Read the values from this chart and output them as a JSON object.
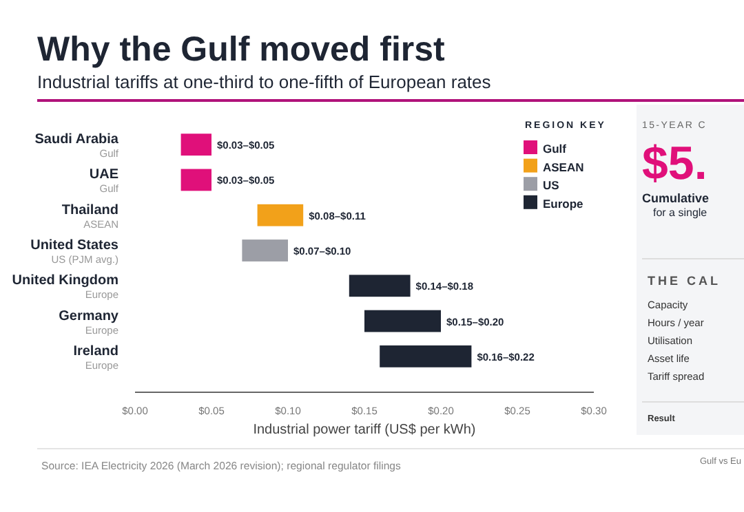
{
  "chart_data": {
    "type": "bar",
    "orientation": "horizontal",
    "title": "Why the Gulf moved first",
    "subtitle": "Industrial tariffs at one-third to one-fifth of European rates",
    "xlabel": "Industrial power tariff (US$ per kWh)",
    "categories": [
      "Saudi Arabia\nGulf",
      "UAE\nGulf",
      "Thailand\nASEAN",
      "United States\nUS (PJM avg.)",
      "United Kingdom\nEurope",
      "Germany\nEurope",
      "Ireland\nEurope"
    ],
    "series": [
      {
        "name": "Gulf",
        "color": "#e0107a",
        "values": [
          0.02,
          0.02,
          null,
          null,
          null,
          null,
          null
        ],
        "base": [
          0.03,
          0.03,
          null,
          null,
          null,
          null,
          null
        ]
      },
      {
        "name": "ASEAN",
        "color": "#f2a11a",
        "values": [
          null,
          null,
          0.03,
          null,
          null,
          null,
          null
        ],
        "base": [
          null,
          null,
          0.08,
          null,
          null,
          null,
          null
        ]
      },
      {
        "name": "US",
        "color": "#9c9ea6",
        "values": [
          null,
          null,
          null,
          0.03,
          null,
          null,
          null
        ],
        "base": [
          null,
          null,
          null,
          0.07,
          null,
          null,
          null
        ]
      },
      {
        "name": "Europe",
        "color": "#1e2533",
        "values": [
          null,
          null,
          null,
          null,
          0.04,
          0.05,
          0.06
        ],
        "base": [
          null,
          null,
          null,
          null,
          0.14,
          0.15,
          0.16
        ]
      }
    ],
    "value_labels": [
      "$0.03–$0.05",
      "$0.03–$0.05",
      "$0.08–$0.11",
      "$0.07–$0.10",
      "$0.14–$0.18",
      "$0.15–$0.20",
      "$0.16–$0.22"
    ],
    "xlim": [
      0,
      0.3
    ],
    "xticks": [
      {
        "value": 0,
        "label": "$0.00"
      },
      {
        "value": 0.05,
        "label": "$0.05"
      },
      {
        "value": 0.1,
        "label": "$0.10"
      },
      {
        "value": 0.15,
        "label": "$0.15"
      },
      {
        "value": 0.2,
        "label": "$0.20"
      },
      {
        "value": 0.25,
        "label": "$0.25"
      },
      {
        "value": 0.3,
        "label": "$0.30"
      }
    ],
    "legend": "top right",
    "legend_title": "REGION KEY",
    "annotations": [
      "Source: IEA Electricity 2026 (March 2026 revision); regional regulator filings",
      "15-YEAR C",
      "$5.",
      "Cumulative",
      "for a single",
      "THE CAL",
      "Capacity",
      "Hours / year",
      "Utilisation",
      "Asset life",
      "Tariff spread",
      "Result",
      "Gulf vs Eu"
    ]
  }
}
